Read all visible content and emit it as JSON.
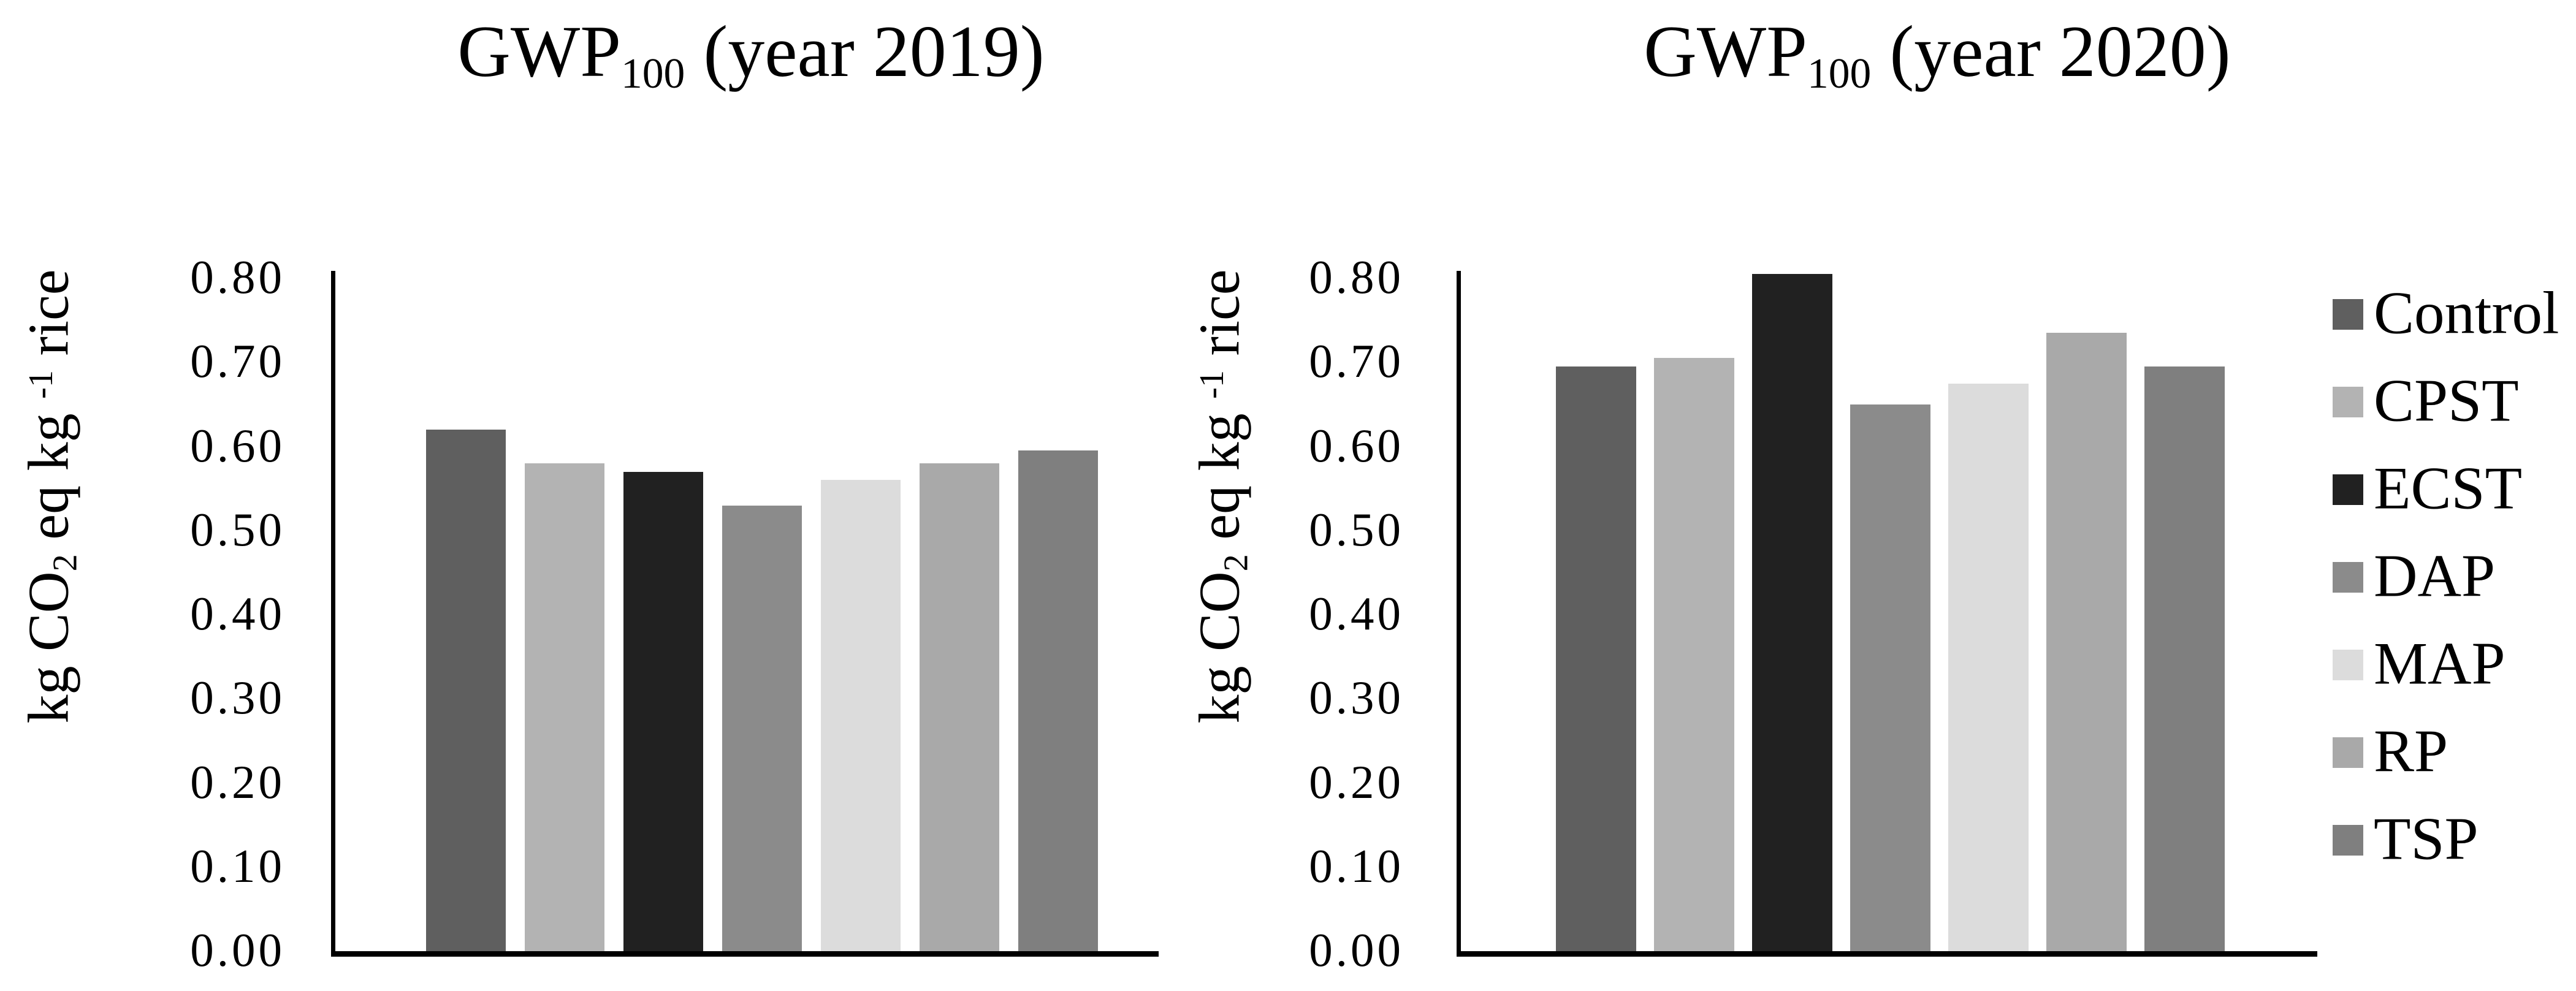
{
  "page": {
    "background": "#ffffff",
    "text_color": "#000000",
    "axis_color": "#000000"
  },
  "display": {
    "charts": [
      {
        "title_prefix": "GWP",
        "title_sub": "100",
        "title_suffix": " (year 2019)",
        "ylabel_p1": "kg CO",
        "ylabel_sub": "2",
        "ylabel_p2": " eq kg ",
        "ylabel_sup": "-1",
        "ylabel_p3": " rice"
      },
      {
        "title_prefix": "GWP",
        "title_sub": "100",
        "title_suffix": " (year 2020)",
        "ylabel_p1": "kg CO",
        "ylabel_sub": "2",
        "ylabel_p2": " eq kg ",
        "ylabel_sup": "-1",
        "ylabel_p3": " rice"
      }
    ]
  },
  "legend": {
    "position": "right",
    "items": [
      {
        "label": "Control",
        "color": "#5f5f5f"
      },
      {
        "label": "CPST",
        "color": "#b3b3b3"
      },
      {
        "label": "ECST",
        "color": "#212121"
      },
      {
        "label": "DAP",
        "color": "#8b8b8b"
      },
      {
        "label": "MAP",
        "color": "#dcdcdc"
      },
      {
        "label": "RP",
        "color": "#a9a9a9"
      },
      {
        "label": "TSP",
        "color": "#7f7f7f"
      }
    ]
  },
  "chart_data": [
    {
      "type": "bar",
      "title": "GWP100 (year 2019)",
      "ylabel": "kg CO2 eq kg-1 rice",
      "xlabel": "",
      "categories": [
        "Control",
        "CPST",
        "ECST",
        "DAP",
        "MAP",
        "RP",
        "TSP"
      ],
      "values": [
        0.62,
        0.58,
        0.57,
        0.53,
        0.56,
        0.58,
        0.595
      ],
      "ylim": [
        0.0,
        0.8
      ],
      "yticks": [
        "0.00",
        "0.10",
        "0.20",
        "0.30",
        "0.40",
        "0.50",
        "0.60",
        "0.70",
        "0.80"
      ],
      "grid": false,
      "legend_position": "right"
    },
    {
      "type": "bar",
      "title": "GWP100 (year 2020)",
      "ylabel": "kg CO2 eq kg-1 rice",
      "xlabel": "",
      "categories": [
        "Control",
        "CPST",
        "ECST",
        "DAP",
        "MAP",
        "RP",
        "TSP"
      ],
      "values": [
        0.695,
        0.705,
        0.805,
        0.65,
        0.675,
        0.735,
        0.695
      ],
      "ylim": [
        0.0,
        0.8
      ],
      "yticks": [
        "0.00",
        "0.10",
        "0.20",
        "0.30",
        "0.40",
        "0.50",
        "0.60",
        "0.70",
        "0.80"
      ],
      "grid": false,
      "legend_position": "right"
    }
  ]
}
